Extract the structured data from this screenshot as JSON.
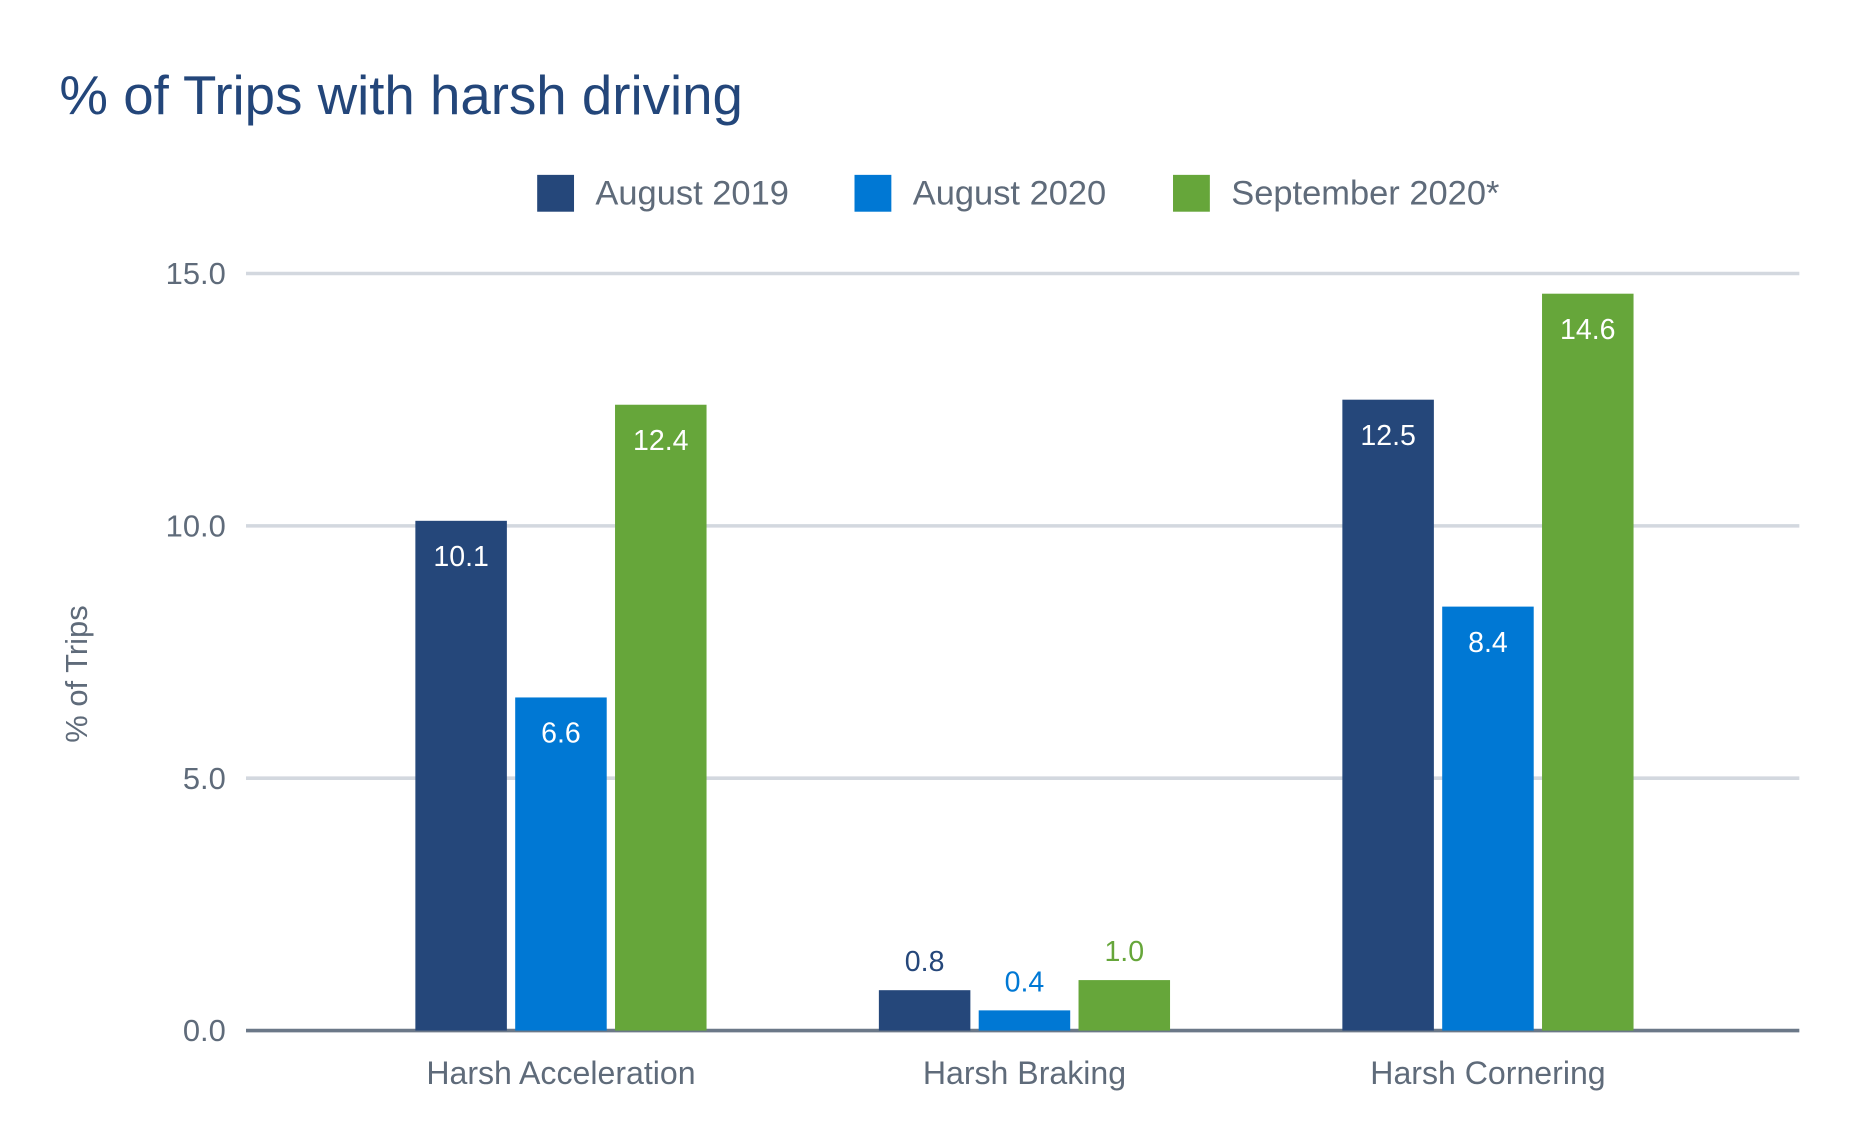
{
  "chart_data": {
    "type": "bar",
    "title": "% of Trips with harsh driving",
    "xlabel": "",
    "ylabel": "% of Trips",
    "ylim": [
      0,
      15
    ],
    "yticks": [
      "0.0",
      "5.0",
      "10.0",
      "15.0"
    ],
    "grid": true,
    "legend_placement": "top",
    "categories": [
      "Harsh Acceleration",
      "Harsh Braking",
      "Harsh Cornering"
    ],
    "series": [
      {
        "name": "August 2019",
        "color": "#25477a",
        "values": [
          10.1,
          0.8,
          12.5
        ],
        "labels": [
          "10.1",
          "0.8",
          "12.5"
        ]
      },
      {
        "name": "August 2020",
        "color": "#0078d4",
        "values": [
          6.6,
          0.4,
          8.4
        ],
        "labels": [
          "6.6",
          "0.4",
          "8.4"
        ]
      },
      {
        "name": "September 2020*",
        "color": "#66a63a",
        "values": [
          12.4,
          1.0,
          14.6
        ],
        "labels": [
          "12.4",
          "1.0",
          "14.6"
        ]
      }
    ]
  }
}
